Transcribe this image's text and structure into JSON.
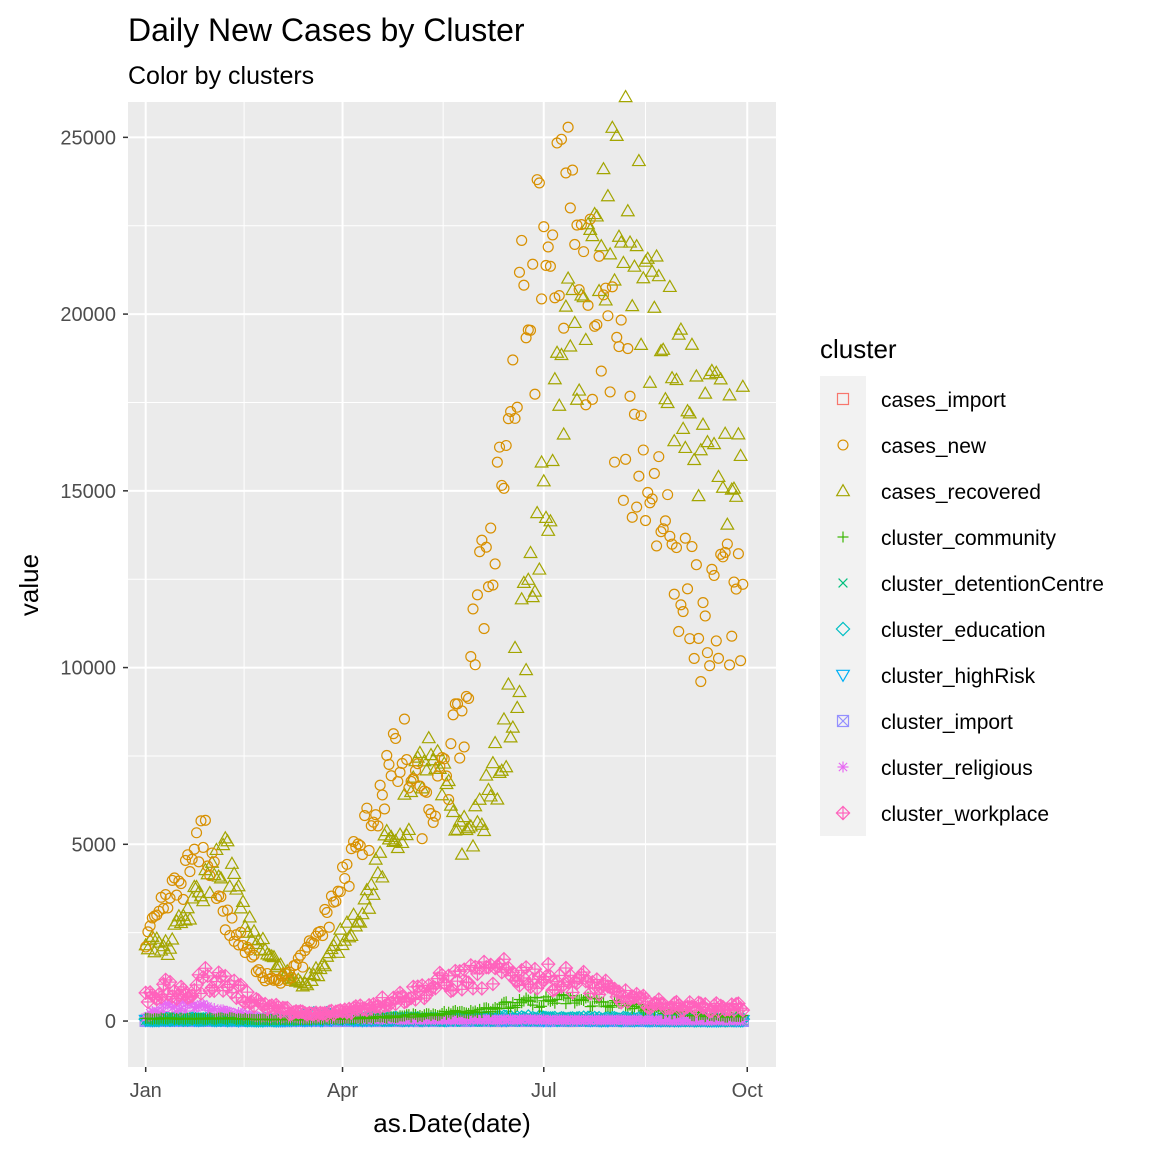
{
  "chart_data": {
    "type": "scatter",
    "title": "Daily New Cases by Cluster",
    "subtitle": "Color by clusters",
    "xlabel": "as.Date(date)",
    "ylabel": "value",
    "x_range_days": [
      -8,
      285
    ],
    "ylim": [
      -1300,
      26000
    ],
    "x_ticks": [
      {
        "label": "Jan",
        "day": 0
      },
      {
        "label": "Apr",
        "day": 89
      },
      {
        "label": "Jul",
        "day": 180
      },
      {
        "label": "Oct",
        "day": 272
      }
    ],
    "y_ticks": [
      0,
      5000,
      10000,
      15000,
      20000,
      25000
    ],
    "legend": {
      "title": "cluster",
      "position": "right",
      "entries": [
        {
          "key": "cases_import",
          "label": "cases_import",
          "color": "#F8766D",
          "shape": "square"
        },
        {
          "key": "cases_new",
          "label": "cases_new",
          "color": "#D89000",
          "shape": "circle"
        },
        {
          "key": "cases_recovered",
          "label": "cases_recovered",
          "color": "#A3A500",
          "shape": "triangle"
        },
        {
          "key": "cluster_community",
          "label": "cluster_community",
          "color": "#39B600",
          "shape": "plus"
        },
        {
          "key": "cluster_detentionCentre",
          "label": "cluster_detentionCentre",
          "color": "#00BF7D",
          "shape": "cross"
        },
        {
          "key": "cluster_education",
          "label": "cluster_education",
          "color": "#00BFC4",
          "shape": "diamond"
        },
        {
          "key": "cluster_highRisk",
          "label": "cluster_highRisk",
          "color": "#00B0F6",
          "shape": "triangle-down"
        },
        {
          "key": "cluster_import",
          "label": "cluster_import",
          "color": "#9590FF",
          "shape": "square-cross"
        },
        {
          "key": "cluster_religious",
          "label": "cluster_religious",
          "color": "#E76BF3",
          "shape": "asterisk"
        },
        {
          "key": "cluster_workplace",
          "label": "cluster_workplace",
          "color": "#FF62BC",
          "shape": "diamond-plus"
        }
      ]
    },
    "series": [
      {
        "name": "cases_new",
        "day_start": 0,
        "day_step": 9,
        "noise": 0.15,
        "values": [
          2200,
          3300,
          4100,
          5200,
          2900,
          2000,
          1300,
          1200,
          1800,
          2800,
          4100,
          5200,
          6800,
          7500,
          5800,
          6700,
          8800,
          12500,
          16200,
          19800,
          21500,
          22800,
          20500,
          19500,
          17000,
          15800,
          14500,
          12400,
          11000,
          11800,
          11900
        ]
      },
      {
        "name": "cases_recovered",
        "day_start": 0,
        "day_step": 9,
        "noise": 0.13,
        "values": [
          2300,
          2000,
          3000,
          3900,
          4800,
          2800,
          2000,
          1300,
          1100,
          1600,
          2500,
          3300,
          4700,
          5700,
          7500,
          6500,
          5200,
          6000,
          7800,
          11000,
          14500,
          18200,
          20500,
          21800,
          23500,
          21000,
          19000,
          17500,
          16500,
          16200,
          15900
        ]
      },
      {
        "name": "cluster_workplace",
        "day_start": 0,
        "day_step": 9,
        "noise": 0.3,
        "values": [
          700,
          900,
          700,
          1200,
          1100,
          700,
          450,
          300,
          200,
          200,
          300,
          400,
          550,
          700,
          900,
          1100,
          1200,
          1300,
          1350,
          1300,
          1250,
          1200,
          1100,
          900,
          700,
          550,
          450,
          420,
          400,
          380,
          400
        ]
      },
      {
        "name": "cluster_community",
        "day_start": 0,
        "day_step": 9,
        "noise": 0.3,
        "values": [
          60,
          80,
          60,
          70,
          80,
          60,
          40,
          40,
          40,
          50,
          70,
          90,
          110,
          140,
          180,
          220,
          270,
          350,
          420,
          500,
          560,
          600,
          580,
          520,
          450,
          380,
          300,
          240,
          180,
          150,
          130
        ]
      },
      {
        "name": "cluster_religious",
        "day_start": 0,
        "day_step": 9,
        "noise": 0.4,
        "values": [
          150,
          400,
          450,
          350,
          250,
          150,
          100,
          80,
          70,
          60,
          60,
          60,
          50,
          50,
          40,
          40,
          40,
          40,
          40,
          40,
          40,
          30,
          30,
          30,
          30,
          30,
          20,
          20,
          20,
          20,
          20
        ]
      },
      {
        "name": "cluster_education",
        "day_start": 0,
        "day_step": 9,
        "noise": 0.5,
        "values": [
          40,
          60,
          60,
          50,
          50,
          40,
          40,
          60,
          150,
          160,
          120,
          80,
          70,
          60,
          50,
          50,
          60,
          80,
          90,
          90,
          80,
          80,
          70,
          60,
          60,
          50,
          50,
          40,
          40,
          40,
          40
        ]
      },
      {
        "name": "cluster_highRisk",
        "day_start": 0,
        "day_step": 9,
        "noise": 0.5,
        "values": [
          30,
          40,
          50,
          40,
          30,
          30,
          20,
          30,
          40,
          50,
          50,
          40,
          40,
          40,
          50,
          50,
          60,
          60,
          50,
          50,
          40,
          40,
          40,
          30,
          30,
          30,
          30,
          30,
          20,
          20,
          20
        ]
      },
      {
        "name": "cluster_detentionCentre",
        "day_start": 0,
        "day_step": 9,
        "noise": 0.5,
        "values": [
          20,
          20,
          20,
          20,
          20,
          20,
          20,
          10,
          10,
          10,
          10,
          20,
          20,
          20,
          20,
          30,
          30,
          20,
          20,
          20,
          20,
          20,
          10,
          10,
          10,
          10,
          10,
          10,
          10,
          10,
          10
        ]
      },
      {
        "name": "cluster_import",
        "day_start": 0,
        "day_step": 9,
        "noise": 0.5,
        "values": [
          5,
          5,
          5,
          5,
          5,
          5,
          5,
          5,
          5,
          5,
          5,
          5,
          5,
          5,
          5,
          5,
          5,
          5,
          5,
          5,
          5,
          5,
          5,
          5,
          5,
          5,
          5,
          5,
          5,
          5,
          5
        ]
      },
      {
        "name": "cases_import",
        "day_start": 0,
        "day_step": 9,
        "noise": 0.5,
        "values": [
          10,
          10,
          10,
          10,
          10,
          10,
          5,
          5,
          5,
          5,
          5,
          5,
          5,
          5,
          5,
          5,
          5,
          5,
          5,
          5,
          5,
          5,
          5,
          5,
          5,
          5,
          5,
          5,
          5,
          5,
          5
        ]
      }
    ]
  }
}
